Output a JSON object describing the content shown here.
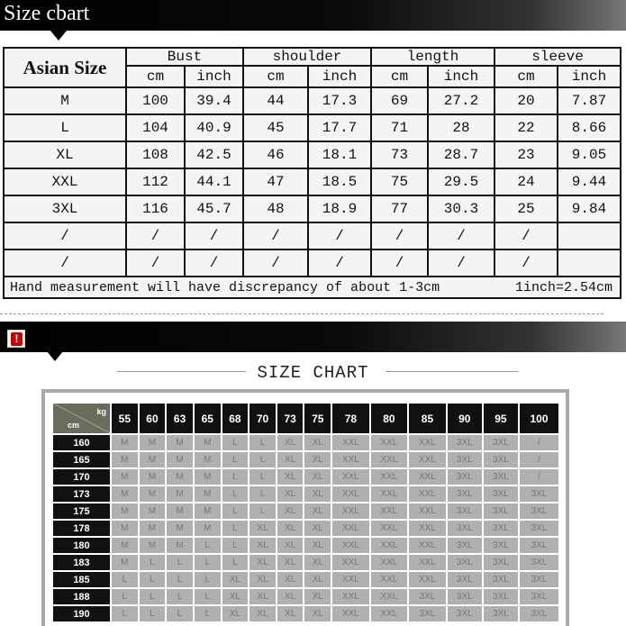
{
  "top": {
    "title": "Size cbart",
    "corner": "Asian Size",
    "groups": [
      "Bust",
      "shoulder",
      "length",
      "sleeve"
    ],
    "units": [
      "cm",
      "inch",
      "cm",
      "inch",
      "cm",
      "inch",
      "cm",
      "inch"
    ],
    "rows": [
      [
        "M",
        "100",
        "39.4",
        "44",
        "17.3",
        "69",
        "27.2",
        "20",
        "7.87"
      ],
      [
        "L",
        "104",
        "40.9",
        "45",
        "17.7",
        "71",
        "28",
        "22",
        "8.66"
      ],
      [
        "XL",
        "108",
        "42.5",
        "46",
        "18.1",
        "73",
        "28.7",
        "23",
        "9.05"
      ],
      [
        "XXL",
        "112",
        "44.1",
        "47",
        "18.5",
        "75",
        "29.5",
        "24",
        "9.44"
      ],
      [
        "3XL",
        "116",
        "45.7",
        "48",
        "18.9",
        "77",
        "30.3",
        "25",
        "9.84"
      ],
      [
        "/",
        "/",
        "/",
        "/",
        "/",
        "/",
        "/",
        "/",
        ""
      ],
      [
        "/",
        "/",
        "/",
        "/",
        "/",
        "/",
        "/",
        "/",
        ""
      ]
    ],
    "note": "Hand measurement will have discrepancy of about 1-3cm",
    "conversion": "1inch=2.54cm"
  },
  "bottom": {
    "warning_icon": "exclamation-icon",
    "title": "SIZE CHART",
    "corner_kg": "kg",
    "corner_cm": "cm",
    "weights": [
      "55",
      "60",
      "63",
      "65",
      "68",
      "70",
      "73",
      "75",
      "78",
      "80",
      "85",
      "90",
      "95",
      "100"
    ],
    "rows": [
      {
        "h": "160",
        "s": [
          "M",
          "M",
          "M",
          "M",
          "L",
          "L",
          "XL",
          "XL",
          "XXL",
          "XXL",
          "XXL",
          "3XL",
          "3XL",
          "/"
        ]
      },
      {
        "h": "165",
        "s": [
          "M",
          "M",
          "M",
          "M",
          "L",
          "L",
          "XL",
          "XL",
          "XXL",
          "XXL",
          "XXL",
          "3XL",
          "3XL",
          "/"
        ]
      },
      {
        "h": "170",
        "s": [
          "M",
          "M",
          "M",
          "M",
          "L",
          "L",
          "XL",
          "XL",
          "XXL",
          "XXL",
          "XXL",
          "3XL",
          "3XL",
          "/"
        ]
      },
      {
        "h": "173",
        "s": [
          "M",
          "M",
          "M",
          "M",
          "L",
          "L",
          "XL",
          "XL",
          "XXL",
          "XXL",
          "XXL",
          "3XL",
          "3XL",
          "3XL"
        ]
      },
      {
        "h": "175",
        "s": [
          "M",
          "M",
          "M",
          "M",
          "L",
          "L",
          "XL",
          "XL",
          "XXL",
          "XXL",
          "XXL",
          "3XL",
          "3XL",
          "3XL"
        ]
      },
      {
        "h": "178",
        "s": [
          "M",
          "M",
          "M",
          "M",
          "L",
          "XL",
          "XL",
          "XL",
          "XXL",
          "XXL",
          "XXL",
          "3XL",
          "3XL",
          "3XL"
        ]
      },
      {
        "h": "180",
        "s": [
          "M",
          "M",
          "M",
          "L",
          "L",
          "XL",
          "XL",
          "XL",
          "XXL",
          "XXL",
          "XXL",
          "3XL",
          "3XL",
          "3XL"
        ]
      },
      {
        "h": "183",
        "s": [
          "M",
          "L",
          "L",
          "L",
          "L",
          "XL",
          "XL",
          "XL",
          "XXL",
          "XXL",
          "XXL",
          "3XL",
          "3XL",
          "3XL"
        ]
      },
      {
        "h": "185",
        "s": [
          "L",
          "L",
          "L",
          "L",
          "XL",
          "XL",
          "XL",
          "XL",
          "XXL",
          "XXL",
          "XXL",
          "3XL",
          "3XL",
          "3XL"
        ]
      },
      {
        "h": "188",
        "s": [
          "L",
          "L",
          "L",
          "L",
          "XL",
          "XL",
          "XL",
          "XL",
          "XXL",
          "XXL",
          "3XL",
          "3XL",
          "3XL",
          "3XL"
        ]
      },
      {
        "h": "190",
        "s": [
          "L",
          "L",
          "L",
          "L",
          "XL",
          "XL",
          "XL",
          "XL",
          "XXL",
          "XXL",
          "3XL",
          "3XL",
          "3XL",
          "3XL"
        ]
      }
    ]
  }
}
